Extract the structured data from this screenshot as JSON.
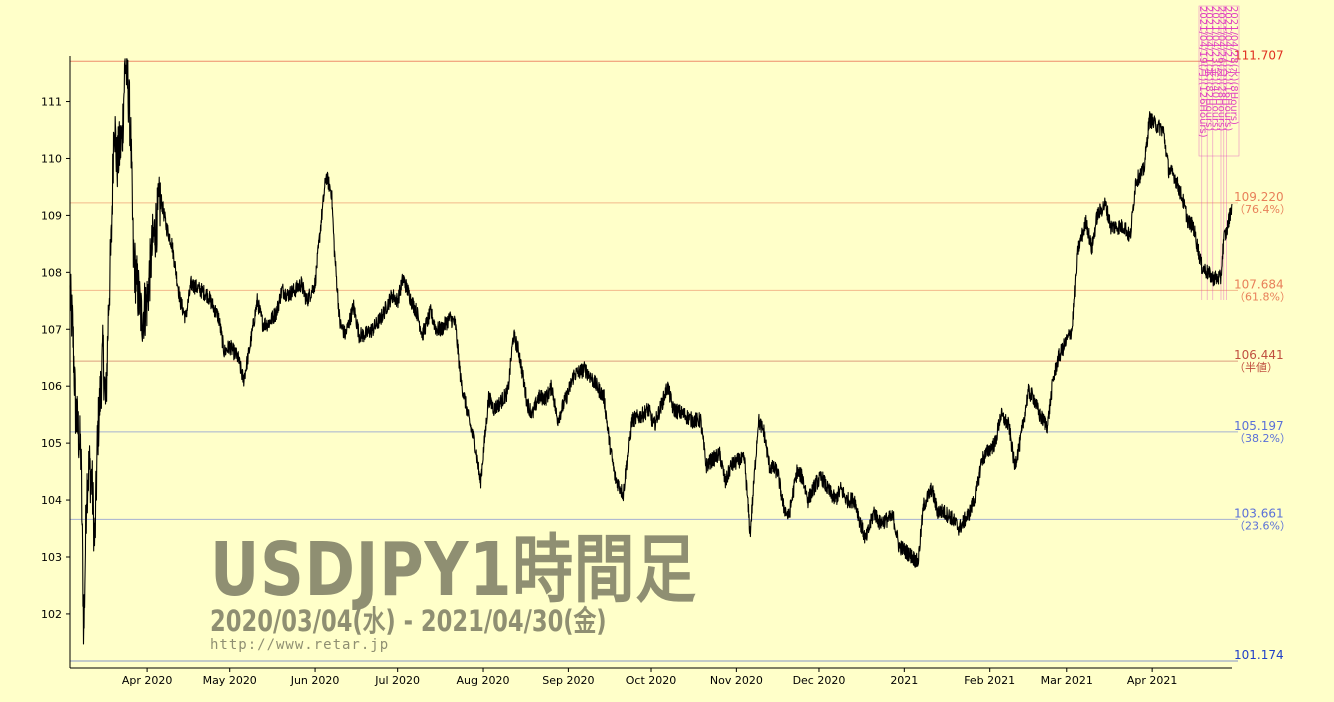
{
  "chart_data": {
    "type": "line",
    "title": "USDJPY1時間足",
    "subtitle": "2020/03/04(水) - 2021/04/30(金)",
    "source": "http://www.retar.jp",
    "xlabel": "",
    "ylabel": "",
    "x_range": [
      "2020-03-04",
      "2021-04-30"
    ],
    "ylim": [
      101.05,
      111.8
    ],
    "y_ticks": [
      102,
      103,
      104,
      105,
      106,
      107,
      108,
      109,
      110,
      111
    ],
    "x_ticks": [
      {
        "date": "2020-04-01",
        "label": "Apr 2020"
      },
      {
        "date": "2020-05-01",
        "label": "May 2020"
      },
      {
        "date": "2020-06-01",
        "label": "Jun 2020"
      },
      {
        "date": "2020-07-01",
        "label": "Jul 2020"
      },
      {
        "date": "2020-08-01",
        "label": "Aug 2020"
      },
      {
        "date": "2020-09-01",
        "label": "Sep 2020"
      },
      {
        "date": "2020-10-01",
        "label": "Oct 2020"
      },
      {
        "date": "2020-11-01",
        "label": "Nov 2020"
      },
      {
        "date": "2020-12-01",
        "label": "Dec 2020"
      },
      {
        "date": "2021-01-01",
        "label": "2021"
      },
      {
        "date": "2021-02-01",
        "label": "Feb 2021"
      },
      {
        "date": "2021-03-01",
        "label": "Mar 2021"
      },
      {
        "date": "2021-04-01",
        "label": "Apr 2021"
      }
    ],
    "series": [
      {
        "values": [
          [
            "2020-03-04",
            107.6
          ],
          [
            "2020-03-05",
            107.0
          ],
          [
            "2020-03-06",
            105.6
          ],
          [
            "2020-03-08",
            104.8
          ],
          [
            "2020-03-09",
            101.6
          ],
          [
            "2020-03-10",
            104.2
          ],
          [
            "2020-03-11",
            104.6
          ],
          [
            "2020-03-12",
            104.3
          ],
          [
            "2020-03-13",
            103.2
          ],
          [
            "2020-03-14",
            105.1
          ],
          [
            "2020-03-16",
            106.6
          ],
          [
            "2020-03-17",
            105.6
          ],
          [
            "2020-03-18",
            107.4
          ],
          [
            "2020-03-19",
            108.5
          ],
          [
            "2020-03-20",
            110.8
          ],
          [
            "2020-03-21",
            109.9
          ],
          [
            "2020-03-23",
            110.4
          ],
          [
            "2020-03-24",
            111.7
          ],
          [
            "2020-03-25",
            111.3
          ],
          [
            "2020-03-26",
            110.5
          ],
          [
            "2020-03-27",
            108.3
          ],
          [
            "2020-03-28",
            107.9
          ],
          [
            "2020-03-30",
            107.2
          ],
          [
            "2020-04-01",
            107.5
          ],
          [
            "2020-04-03",
            108.5
          ],
          [
            "2020-04-06",
            109.3
          ],
          [
            "2020-04-08",
            108.8
          ],
          [
            "2020-04-10",
            108.5
          ],
          [
            "2020-04-13",
            107.5
          ],
          [
            "2020-04-15",
            107.2
          ],
          [
            "2020-04-17",
            107.8
          ],
          [
            "2020-04-20",
            107.7
          ],
          [
            "2020-04-23",
            107.6
          ],
          [
            "2020-04-25",
            107.4
          ],
          [
            "2020-04-27",
            107.2
          ],
          [
            "2020-04-29",
            106.6
          ],
          [
            "2020-05-01",
            106.7
          ],
          [
            "2020-05-04",
            106.5
          ],
          [
            "2020-05-06",
            106.1
          ],
          [
            "2020-05-08",
            106.6
          ],
          [
            "2020-05-11",
            107.5
          ],
          [
            "2020-05-13",
            107.1
          ],
          [
            "2020-05-15",
            107.1
          ],
          [
            "2020-05-18",
            107.3
          ],
          [
            "2020-05-20",
            107.7
          ],
          [
            "2020-05-22",
            107.6
          ],
          [
            "2020-05-25",
            107.7
          ],
          [
            "2020-05-27",
            107.8
          ],
          [
            "2020-05-29",
            107.5
          ],
          [
            "2020-06-01",
            107.8
          ],
          [
            "2020-06-03",
            108.8
          ],
          [
            "2020-06-05",
            109.7
          ],
          [
            "2020-06-07",
            109.4
          ],
          [
            "2020-06-08",
            108.4
          ],
          [
            "2020-06-10",
            107.1
          ],
          [
            "2020-06-12",
            106.9
          ],
          [
            "2020-06-15",
            107.4
          ],
          [
            "2020-06-17",
            106.9
          ],
          [
            "2020-06-19",
            106.9
          ],
          [
            "2020-06-22",
            107.0
          ],
          [
            "2020-06-25",
            107.2
          ],
          [
            "2020-06-29",
            107.6
          ],
          [
            "2020-07-01",
            107.5
          ],
          [
            "2020-07-03",
            107.9
          ],
          [
            "2020-07-06",
            107.5
          ],
          [
            "2020-07-08",
            107.3
          ],
          [
            "2020-07-10",
            106.9
          ],
          [
            "2020-07-13",
            107.3
          ],
          [
            "2020-07-15",
            107.0
          ],
          [
            "2020-07-17",
            107.0
          ],
          [
            "2020-07-20",
            107.2
          ],
          [
            "2020-07-22",
            107.1
          ],
          [
            "2020-07-24",
            106.1
          ],
          [
            "2020-07-27",
            105.4
          ],
          [
            "2020-07-29",
            105.0
          ],
          [
            "2020-07-31",
            104.3
          ],
          [
            "2020-08-03",
            105.8
          ],
          [
            "2020-08-05",
            105.6
          ],
          [
            "2020-08-07",
            105.7
          ],
          [
            "2020-08-10",
            105.9
          ],
          [
            "2020-08-12",
            106.9
          ],
          [
            "2020-08-14",
            106.6
          ],
          [
            "2020-08-17",
            105.7
          ],
          [
            "2020-08-19",
            105.5
          ],
          [
            "2020-08-21",
            105.8
          ],
          [
            "2020-08-24",
            105.8
          ],
          [
            "2020-08-26",
            106.0
          ],
          [
            "2020-08-28",
            105.4
          ],
          [
            "2020-09-01",
            105.9
          ],
          [
            "2020-09-03",
            106.2
          ],
          [
            "2020-09-07",
            106.3
          ],
          [
            "2020-09-10",
            106.1
          ],
          [
            "2020-09-14",
            105.8
          ],
          [
            "2020-09-16",
            105.0
          ],
          [
            "2020-09-18",
            104.4
          ],
          [
            "2020-09-21",
            104.1
          ],
          [
            "2020-09-24",
            105.4
          ],
          [
            "2020-09-28",
            105.5
          ],
          [
            "2020-09-30",
            105.6
          ],
          [
            "2020-10-02",
            105.3
          ],
          [
            "2020-10-05",
            105.7
          ],
          [
            "2020-10-07",
            106.0
          ],
          [
            "2020-10-09",
            105.6
          ],
          [
            "2020-10-13",
            105.5
          ],
          [
            "2020-10-16",
            105.4
          ],
          [
            "2020-10-19",
            105.4
          ],
          [
            "2020-10-21",
            104.6
          ],
          [
            "2020-10-23",
            104.7
          ],
          [
            "2020-10-26",
            104.8
          ],
          [
            "2020-10-28",
            104.3
          ],
          [
            "2020-10-30",
            104.6
          ],
          [
            "2020-11-02",
            104.7
          ],
          [
            "2020-11-04",
            104.7
          ],
          [
            "2020-11-06",
            103.4
          ],
          [
            "2020-11-09",
            105.4
          ],
          [
            "2020-11-11",
            105.2
          ],
          [
            "2020-11-13",
            104.6
          ],
          [
            "2020-11-16",
            104.5
          ],
          [
            "2020-11-18",
            103.9
          ],
          [
            "2020-11-20",
            103.7
          ],
          [
            "2020-11-23",
            104.5
          ],
          [
            "2020-11-25",
            104.4
          ],
          [
            "2020-11-27",
            104.0
          ],
          [
            "2020-11-30",
            104.3
          ],
          [
            "2020-12-02",
            104.4
          ],
          [
            "2020-12-04",
            104.2
          ],
          [
            "2020-12-07",
            104.0
          ],
          [
            "2020-12-09",
            104.2
          ],
          [
            "2020-12-11",
            104.0
          ],
          [
            "2020-12-14",
            104.0
          ],
          [
            "2020-12-16",
            103.6
          ],
          [
            "2020-12-18",
            103.3
          ],
          [
            "2020-12-21",
            103.8
          ],
          [
            "2020-12-23",
            103.6
          ],
          [
            "2020-12-28",
            103.7
          ],
          [
            "2020-12-30",
            103.2
          ],
          [
            "2021-01-04",
            103.0
          ],
          [
            "2021-01-06",
            102.9
          ],
          [
            "2021-01-08",
            103.9
          ],
          [
            "2021-01-11",
            104.2
          ],
          [
            "2021-01-13",
            103.8
          ],
          [
            "2021-01-15",
            103.8
          ],
          [
            "2021-01-18",
            103.7
          ],
          [
            "2021-01-21",
            103.5
          ],
          [
            "2021-01-25",
            103.8
          ],
          [
            "2021-01-27",
            104.1
          ],
          [
            "2021-01-29",
            104.7
          ],
          [
            "2021-02-01",
            104.9
          ],
          [
            "2021-02-03",
            105.0
          ],
          [
            "2021-02-05",
            105.5
          ],
          [
            "2021-02-08",
            105.3
          ],
          [
            "2021-02-10",
            104.6
          ],
          [
            "2021-02-12",
            105.0
          ],
          [
            "2021-02-15",
            105.9
          ],
          [
            "2021-02-17",
            105.8
          ],
          [
            "2021-02-19",
            105.5
          ],
          [
            "2021-02-22",
            105.3
          ],
          [
            "2021-02-24",
            106.1
          ],
          [
            "2021-02-26",
            106.5
          ],
          [
            "2021-03-01",
            106.8
          ],
          [
            "2021-03-03",
            107.0
          ],
          [
            "2021-03-05",
            108.4
          ],
          [
            "2021-03-08",
            108.9
          ],
          [
            "2021-03-10",
            108.4
          ],
          [
            "2021-03-12",
            109.0
          ],
          [
            "2021-03-15",
            109.2
          ],
          [
            "2021-03-17",
            108.8
          ],
          [
            "2021-03-19",
            108.8
          ],
          [
            "2021-03-22",
            108.8
          ],
          [
            "2021-03-24",
            108.6
          ],
          [
            "2021-03-26",
            109.6
          ],
          [
            "2021-03-29",
            109.8
          ],
          [
            "2021-03-31",
            110.7
          ],
          [
            "2021-04-02",
            110.6
          ],
          [
            "2021-04-05",
            110.5
          ],
          [
            "2021-04-07",
            109.8
          ],
          [
            "2021-04-09",
            109.7
          ],
          [
            "2021-04-12",
            109.3
          ],
          [
            "2021-04-14",
            108.9
          ],
          [
            "2021-04-16",
            108.8
          ],
          [
            "2021-04-19",
            108.1
          ],
          [
            "2021-04-21",
            108.0
          ],
          [
            "2021-04-23",
            107.9
          ],
          [
            "2021-04-26",
            107.9
          ],
          [
            "2021-04-27",
            108.6
          ],
          [
            "2021-04-28",
            108.7
          ],
          [
            "2021-04-30",
            109.2
          ]
        ]
      }
    ],
    "fib_levels": [
      {
        "value": 111.707,
        "label": "111.707",
        "pct": "",
        "color": "#e03020"
      },
      {
        "value": 109.22,
        "label": "109.220",
        "pct": "（76.4%）",
        "color": "#e8805a"
      },
      {
        "value": 107.684,
        "label": "107.684",
        "pct": "（61.8%）",
        "color": "#e8805a"
      },
      {
        "value": 106.441,
        "label": "106.441",
        "pct": "（半値）",
        "color": "#c05040"
      },
      {
        "value": 105.197,
        "label": "105.197",
        "pct": "（38.2%）",
        "color": "#5a70d8"
      },
      {
        "value": 103.661,
        "label": "103.661",
        "pct": "（23.6%）",
        "color": "#5a70d8"
      },
      {
        "value": 101.174,
        "label": "101.174",
        "pct": "",
        "color": "#2040c8"
      }
    ],
    "annotations": [
      {
        "text": "2021/04/19(月)(126Hours)",
        "date": "2021-04-19",
        "color": "#e040c0"
      },
      {
        "text": "2021/04/21(水)(82Hours)",
        "date": "2021-04-21",
        "color": "#e040c0"
      },
      {
        "text": "2021/04/23(金)(40Hours)",
        "date": "2021-04-23",
        "color": "#e040c0"
      },
      {
        "text": "2021/04/26(月)(28Hours)",
        "date": "2021-04-26",
        "color": "#e040c0"
      },
      {
        "text": "2021/04/27(火)(16Hours)",
        "date": "2021-04-27",
        "color": "#e040c0"
      },
      {
        "text": "2021/04/28(水)(8Hours)",
        "date": "2021-04-28",
        "color": "#e040c0"
      }
    ],
    "colors": {
      "background": "#ffffc9",
      "line": "#000000",
      "axis": "#000000"
    },
    "grid": false,
    "legend": "none"
  }
}
